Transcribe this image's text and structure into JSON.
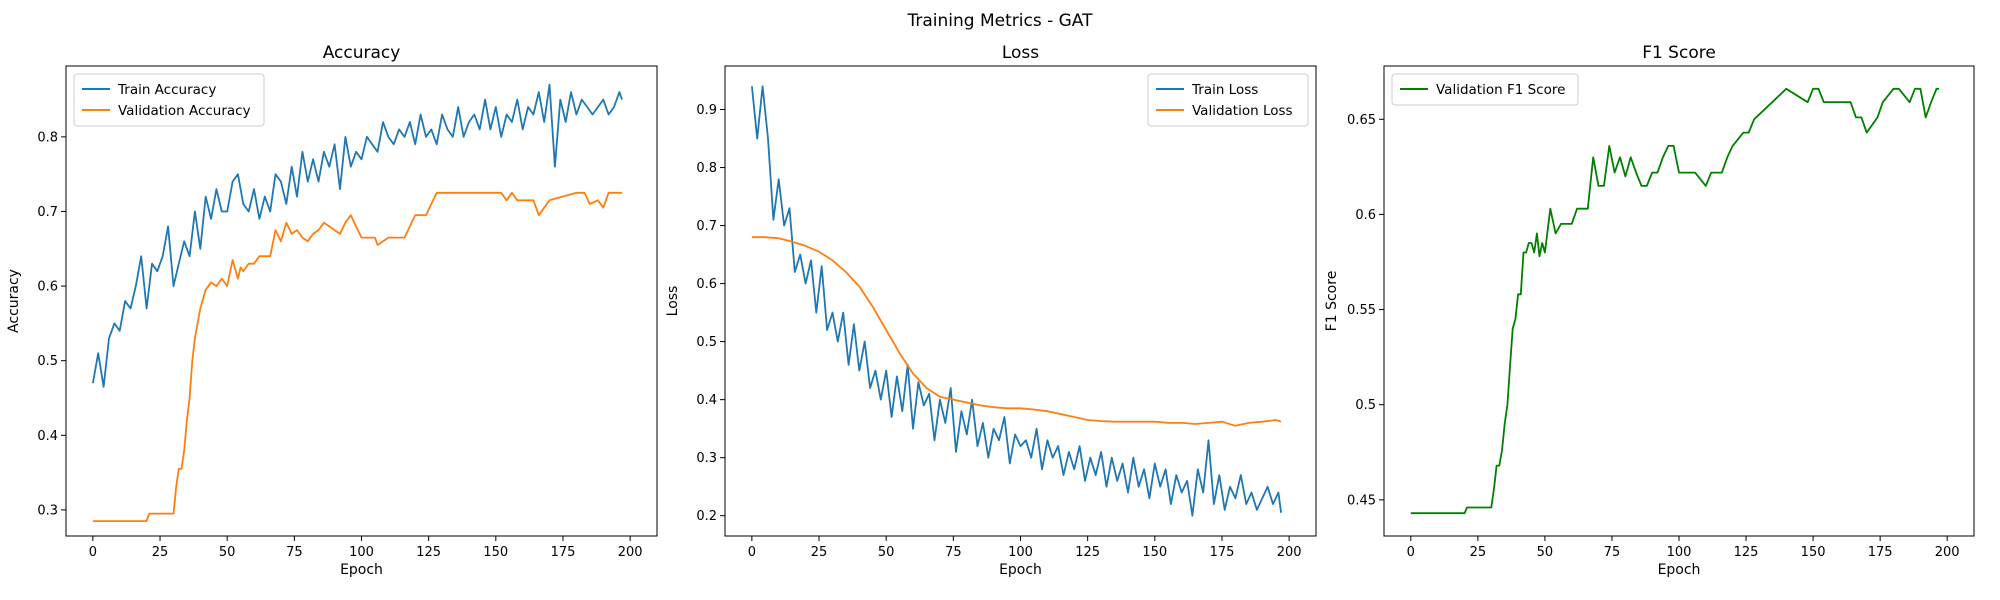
{
  "figure": {
    "suptitle": "Training Metrics - GAT"
  },
  "chart_data": [
    {
      "type": "line",
      "title": "Accuracy",
      "xlabel": "Epoch",
      "ylabel": "Accuracy",
      "xlim": [
        -10,
        210
      ],
      "ylim": [
        0.265,
        0.895
      ],
      "xticks": [
        0,
        25,
        50,
        75,
        100,
        125,
        150,
        175,
        200
      ],
      "yticks": [
        0.3,
        0.4,
        0.5,
        0.6,
        0.7,
        0.8
      ],
      "legend": "top-left",
      "series": [
        {
          "name": "Train Accuracy",
          "color": "#1f77b4",
          "x": [
            0,
            2,
            4,
            6,
            8,
            10,
            12,
            14,
            16,
            18,
            20,
            22,
            24,
            26,
            28,
            30,
            32,
            34,
            36,
            38,
            40,
            42,
            44,
            46,
            48,
            50,
            52,
            54,
            56,
            58,
            60,
            62,
            64,
            66,
            68,
            70,
            72,
            74,
            76,
            78,
            80,
            82,
            84,
            86,
            88,
            90,
            92,
            94,
            96,
            98,
            100,
            102,
            104,
            106,
            108,
            110,
            112,
            114,
            116,
            118,
            120,
            122,
            124,
            126,
            128,
            130,
            132,
            134,
            136,
            138,
            140,
            142,
            144,
            146,
            148,
            150,
            152,
            154,
            156,
            158,
            160,
            162,
            164,
            166,
            168,
            170,
            172,
            174,
            176,
            178,
            180,
            182,
            184,
            186,
            188,
            190,
            192,
            194,
            196,
            197
          ],
          "values": [
            0.47,
            0.51,
            0.465,
            0.53,
            0.55,
            0.54,
            0.58,
            0.57,
            0.6,
            0.64,
            0.57,
            0.63,
            0.62,
            0.64,
            0.68,
            0.6,
            0.63,
            0.66,
            0.64,
            0.7,
            0.65,
            0.72,
            0.69,
            0.73,
            0.7,
            0.7,
            0.74,
            0.75,
            0.71,
            0.7,
            0.73,
            0.69,
            0.72,
            0.7,
            0.75,
            0.74,
            0.71,
            0.76,
            0.72,
            0.78,
            0.74,
            0.77,
            0.74,
            0.78,
            0.76,
            0.79,
            0.73,
            0.8,
            0.76,
            0.78,
            0.77,
            0.8,
            0.79,
            0.78,
            0.82,
            0.8,
            0.79,
            0.81,
            0.8,
            0.82,
            0.79,
            0.83,
            0.8,
            0.81,
            0.79,
            0.83,
            0.81,
            0.8,
            0.84,
            0.8,
            0.82,
            0.83,
            0.81,
            0.85,
            0.81,
            0.84,
            0.8,
            0.83,
            0.82,
            0.85,
            0.81,
            0.84,
            0.83,
            0.86,
            0.82,
            0.87,
            0.76,
            0.85,
            0.82,
            0.86,
            0.83,
            0.85,
            0.84,
            0.83,
            0.84,
            0.85,
            0.83,
            0.84,
            0.86,
            0.85
          ]
        },
        {
          "name": "Validation Accuracy",
          "color": "#ff7f0e",
          "x": [
            0,
            10,
            20,
            21,
            30,
            31,
            32,
            33,
            34,
            35,
            36,
            37,
            38,
            39,
            40,
            42,
            44,
            46,
            48,
            50,
            52,
            54,
            55,
            56,
            58,
            60,
            62,
            66,
            68,
            70,
            72,
            74,
            76,
            78,
            80,
            82,
            84,
            86,
            88,
            90,
            92,
            94,
            96,
            98,
            100,
            105,
            106,
            110,
            116,
            118,
            120,
            124,
            126,
            128,
            140,
            152,
            154,
            156,
            158,
            160,
            164,
            166,
            168,
            170,
            180,
            183,
            185,
            188,
            190,
            192,
            196,
            197
          ],
          "values": [
            0.285,
            0.285,
            0.285,
            0.295,
            0.295,
            0.33,
            0.355,
            0.355,
            0.38,
            0.42,
            0.45,
            0.5,
            0.53,
            0.55,
            0.57,
            0.595,
            0.605,
            0.6,
            0.61,
            0.6,
            0.635,
            0.61,
            0.625,
            0.62,
            0.63,
            0.63,
            0.64,
            0.64,
            0.675,
            0.66,
            0.685,
            0.67,
            0.675,
            0.665,
            0.66,
            0.67,
            0.675,
            0.685,
            0.68,
            0.675,
            0.67,
            0.685,
            0.695,
            0.68,
            0.665,
            0.665,
            0.655,
            0.665,
            0.665,
            0.68,
            0.695,
            0.695,
            0.71,
            0.725,
            0.725,
            0.725,
            0.715,
            0.725,
            0.715,
            0.715,
            0.715,
            0.695,
            0.705,
            0.715,
            0.725,
            0.725,
            0.71,
            0.715,
            0.705,
            0.725,
            0.725,
            0.725
          ]
        }
      ]
    },
    {
      "type": "line",
      "title": "Loss",
      "xlabel": "Epoch",
      "ylabel": "Loss",
      "xlim": [
        -10,
        210
      ],
      "ylim": [
        0.165,
        0.975
      ],
      "xticks": [
        0,
        25,
        50,
        75,
        100,
        125,
        150,
        175,
        200
      ],
      "yticks": [
        0.2,
        0.3,
        0.4,
        0.5,
        0.6,
        0.7,
        0.8,
        0.9
      ],
      "legend": "top-right",
      "series": [
        {
          "name": "Train Loss",
          "color": "#1f77b4",
          "x": [
            0,
            2,
            4,
            6,
            8,
            10,
            12,
            14,
            16,
            18,
            20,
            22,
            24,
            26,
            28,
            30,
            32,
            34,
            36,
            38,
            40,
            42,
            44,
            46,
            48,
            50,
            52,
            54,
            56,
            58,
            60,
            62,
            64,
            66,
            68,
            70,
            72,
            74,
            76,
            78,
            80,
            82,
            84,
            86,
            88,
            90,
            92,
            94,
            96,
            98,
            100,
            102,
            104,
            106,
            108,
            110,
            112,
            114,
            116,
            118,
            120,
            122,
            124,
            126,
            128,
            130,
            132,
            134,
            136,
            138,
            140,
            142,
            144,
            146,
            148,
            150,
            152,
            154,
            156,
            158,
            160,
            162,
            164,
            166,
            168,
            170,
            172,
            174,
            176,
            178,
            180,
            182,
            184,
            186,
            188,
            190,
            192,
            194,
            196,
            197
          ],
          "values": [
            0.94,
            0.85,
            0.94,
            0.85,
            0.71,
            0.78,
            0.7,
            0.73,
            0.62,
            0.65,
            0.6,
            0.64,
            0.55,
            0.63,
            0.52,
            0.55,
            0.5,
            0.55,
            0.46,
            0.53,
            0.45,
            0.5,
            0.42,
            0.45,
            0.4,
            0.45,
            0.37,
            0.44,
            0.38,
            0.46,
            0.35,
            0.43,
            0.39,
            0.41,
            0.33,
            0.4,
            0.36,
            0.42,
            0.31,
            0.38,
            0.34,
            0.4,
            0.32,
            0.36,
            0.3,
            0.35,
            0.33,
            0.37,
            0.29,
            0.34,
            0.32,
            0.33,
            0.3,
            0.35,
            0.28,
            0.33,
            0.3,
            0.32,
            0.27,
            0.31,
            0.28,
            0.32,
            0.26,
            0.3,
            0.27,
            0.31,
            0.25,
            0.3,
            0.26,
            0.29,
            0.24,
            0.3,
            0.25,
            0.28,
            0.23,
            0.29,
            0.25,
            0.28,
            0.22,
            0.27,
            0.24,
            0.26,
            0.2,
            0.28,
            0.24,
            0.33,
            0.22,
            0.27,
            0.21,
            0.25,
            0.23,
            0.27,
            0.22,
            0.24,
            0.21,
            0.23,
            0.25,
            0.22,
            0.24,
            0.205
          ]
        },
        {
          "name": "Validation Loss",
          "color": "#ff7f0e",
          "x": [
            0,
            5,
            10,
            15,
            20,
            25,
            30,
            35,
            40,
            45,
            50,
            55,
            60,
            65,
            70,
            75,
            80,
            85,
            90,
            95,
            100,
            105,
            110,
            115,
            120,
            125,
            130,
            135,
            140,
            145,
            150,
            155,
            160,
            165,
            170,
            175,
            180,
            185,
            190,
            195,
            197
          ],
          "values": [
            0.68,
            0.68,
            0.678,
            0.672,
            0.665,
            0.655,
            0.64,
            0.62,
            0.595,
            0.56,
            0.52,
            0.48,
            0.445,
            0.42,
            0.405,
            0.4,
            0.395,
            0.39,
            0.387,
            0.385,
            0.385,
            0.383,
            0.38,
            0.375,
            0.37,
            0.365,
            0.363,
            0.362,
            0.362,
            0.362,
            0.362,
            0.36,
            0.36,
            0.358,
            0.36,
            0.362,
            0.355,
            0.36,
            0.362,
            0.365,
            0.362
          ]
        }
      ]
    },
    {
      "type": "line",
      "title": "F1 Score",
      "xlabel": "Epoch",
      "ylabel": "F1 Score",
      "xlim": [
        -10,
        210
      ],
      "ylim": [
        0.431,
        0.678
      ],
      "xticks": [
        0,
        25,
        50,
        75,
        100,
        125,
        150,
        175,
        200
      ],
      "yticks": [
        0.45,
        0.5,
        0.55,
        0.6,
        0.65
      ],
      "legend": "top-left",
      "series": [
        {
          "name": "Validation F1 Score",
          "color": "#008000",
          "x": [
            0,
            10,
            20,
            21,
            30,
            31,
            32,
            33,
            34,
            35,
            36,
            37,
            38,
            39,
            40,
            41,
            42,
            43,
            44,
            45,
            46,
            47,
            48,
            49,
            50,
            52,
            54,
            56,
            58,
            60,
            62,
            64,
            66,
            68,
            70,
            72,
            74,
            76,
            78,
            80,
            82,
            84,
            86,
            88,
            90,
            92,
            94,
            96,
            98,
            100,
            104,
            106,
            110,
            112,
            116,
            118,
            120,
            124,
            126,
            128,
            140,
            148,
            150,
            152,
            154,
            156,
            160,
            164,
            166,
            168,
            170,
            174,
            176,
            180,
            182,
            186,
            188,
            190,
            192,
            194,
            196,
            197
          ],
          "values": [
            0.443,
            0.443,
            0.443,
            0.446,
            0.446,
            0.456,
            0.468,
            0.468,
            0.476,
            0.49,
            0.5,
            0.52,
            0.54,
            0.545,
            0.558,
            0.558,
            0.58,
            0.58,
            0.585,
            0.585,
            0.58,
            0.59,
            0.578,
            0.585,
            0.58,
            0.603,
            0.59,
            0.595,
            0.595,
            0.595,
            0.603,
            0.603,
            0.603,
            0.63,
            0.615,
            0.615,
            0.636,
            0.622,
            0.63,
            0.62,
            0.63,
            0.622,
            0.615,
            0.615,
            0.622,
            0.622,
            0.63,
            0.636,
            0.636,
            0.622,
            0.622,
            0.622,
            0.615,
            0.622,
            0.622,
            0.63,
            0.636,
            0.643,
            0.643,
            0.65,
            0.666,
            0.659,
            0.666,
            0.666,
            0.659,
            0.659,
            0.659,
            0.659,
            0.651,
            0.651,
            0.643,
            0.651,
            0.659,
            0.666,
            0.666,
            0.659,
            0.666,
            0.666,
            0.651,
            0.659,
            0.666,
            0.666
          ]
        }
      ]
    }
  ]
}
